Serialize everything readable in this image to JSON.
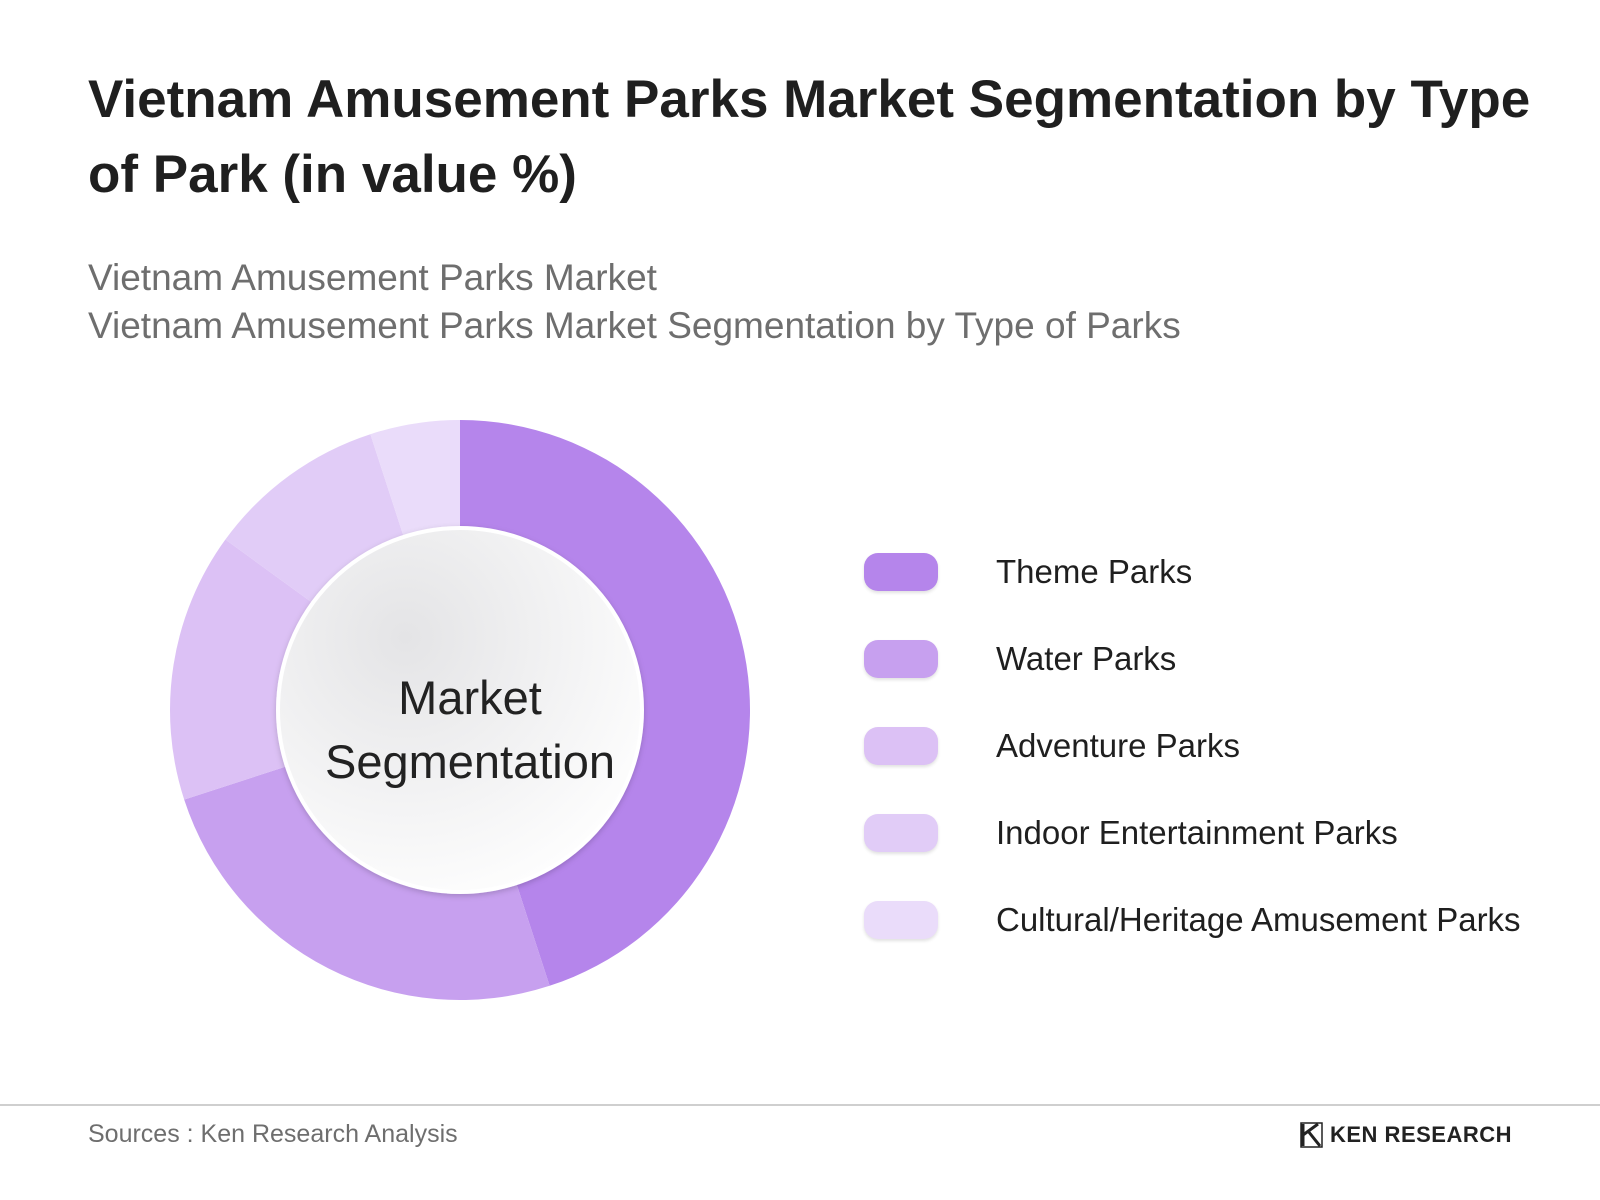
{
  "title": "Vietnam Amusement Parks Market Segmentation by Type of Park (in value %)",
  "subtitle_lines": [
    "Vietnam Amusement Parks Market",
    "Vietnam Amusement Parks Market Segmentation by Type of Parks"
  ],
  "center_label_lines": [
    "Market",
    "Segmentation"
  ],
  "chart_data": {
    "type": "pie",
    "style": "donut",
    "title": "Vietnam Amusement Parks Market Segmentation by Type of Park (in value %)",
    "categories": [
      "Theme Parks",
      "Water Parks",
      "Adventure Parks",
      "Indoor Entertainment Parks",
      "Cultural/Heritage Amusement Parks"
    ],
    "values": [
      45,
      25,
      15,
      10,
      5
    ],
    "colors": [
      "#b585eb",
      "#c7a0ef",
      "#dcc1f5",
      "#e1ccf7",
      "#eadcfa"
    ],
    "legend_position": "right"
  },
  "footer": {
    "source": "Sources : Ken Research Analysis",
    "brand": "KEN RESEARCH"
  }
}
